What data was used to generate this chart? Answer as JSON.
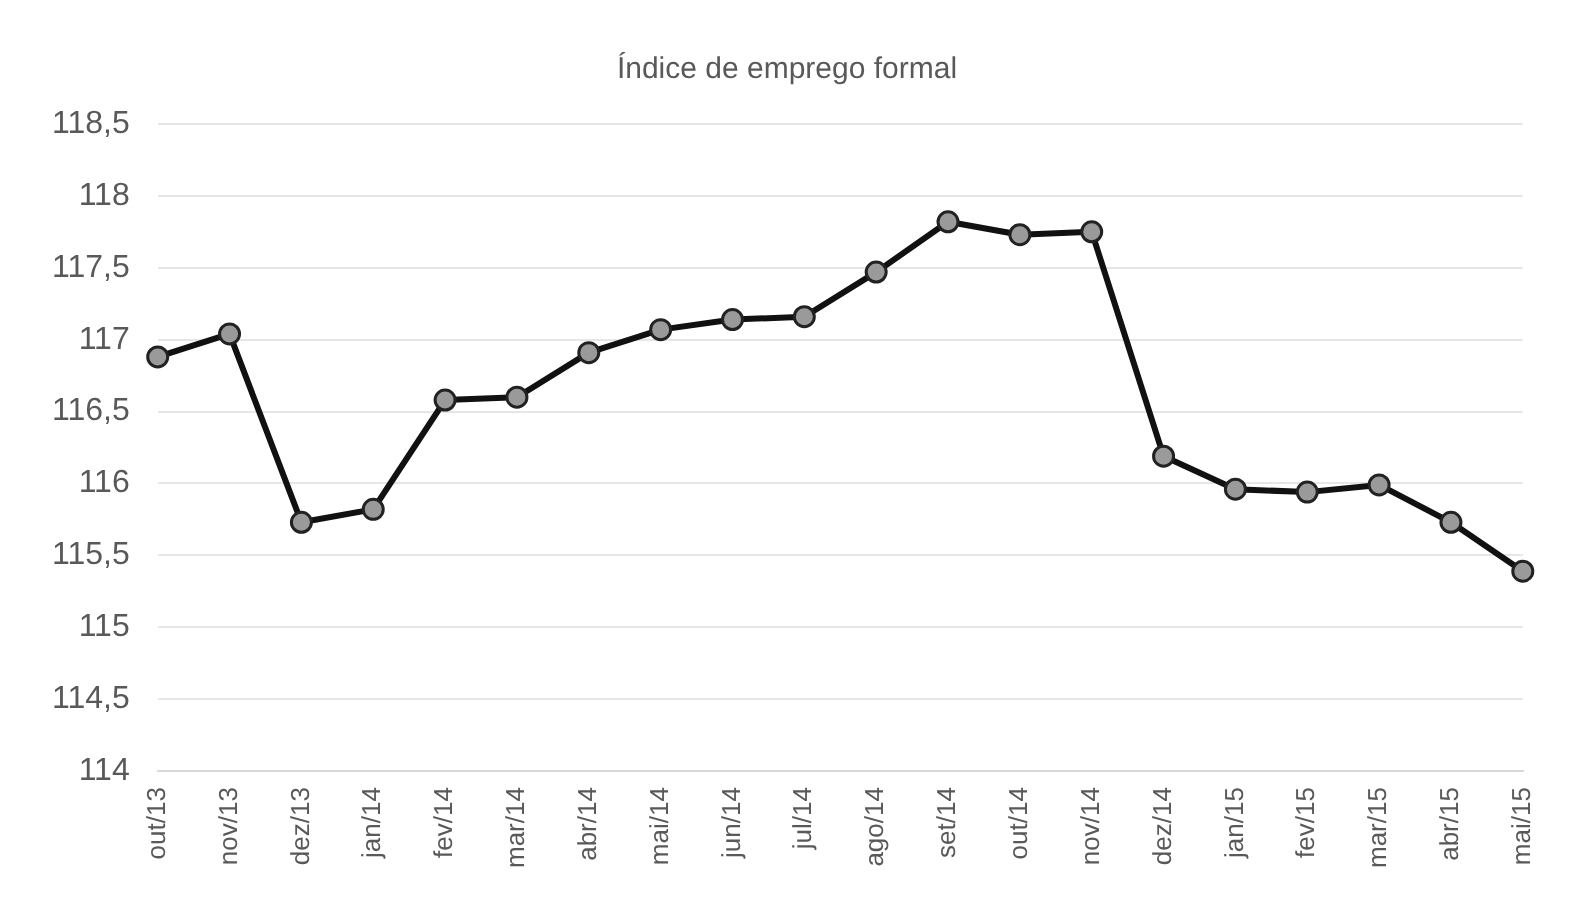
{
  "chart_data": {
    "type": "line",
    "title": "Índice de emprego formal",
    "categories": [
      "out/13",
      "nov/13",
      "dez/13",
      "jan/14",
      "fev/14",
      "mar/14",
      "abr/14",
      "mai/14",
      "jun/14",
      "jul/14",
      "ago/14",
      "set/14",
      "out/14",
      "nov/14",
      "dez/14",
      "jan/15",
      "fev/15",
      "mar/15",
      "abr/15",
      "mai/15"
    ],
    "series": [
      {
        "color": "#111111",
        "values": [
          116.88,
          117.04,
          115.73,
          115.82,
          116.58,
          116.6,
          116.91,
          117.07,
          117.14,
          117.16,
          117.47,
          117.82,
          117.73,
          117.75,
          116.19,
          115.96,
          115.94,
          115.99,
          115.73,
          115.39
        ]
      }
    ],
    "ylim": [
      114,
      118.5
    ],
    "yticks": [
      114,
      {
        "value": 114.5,
        "label": "114,5"
      },
      115,
      {
        "value": 115.5,
        "label": "115,5"
      },
      116,
      {
        "value": 116.5,
        "label": "116,5"
      },
      117,
      {
        "value": 117.5,
        "label": "117,5"
      },
      118,
      {
        "value": 118.5,
        "label": "118,5"
      }
    ],
    "grid": "y",
    "legend": false,
    "marker": "circle",
    "line_style": "solid"
  }
}
